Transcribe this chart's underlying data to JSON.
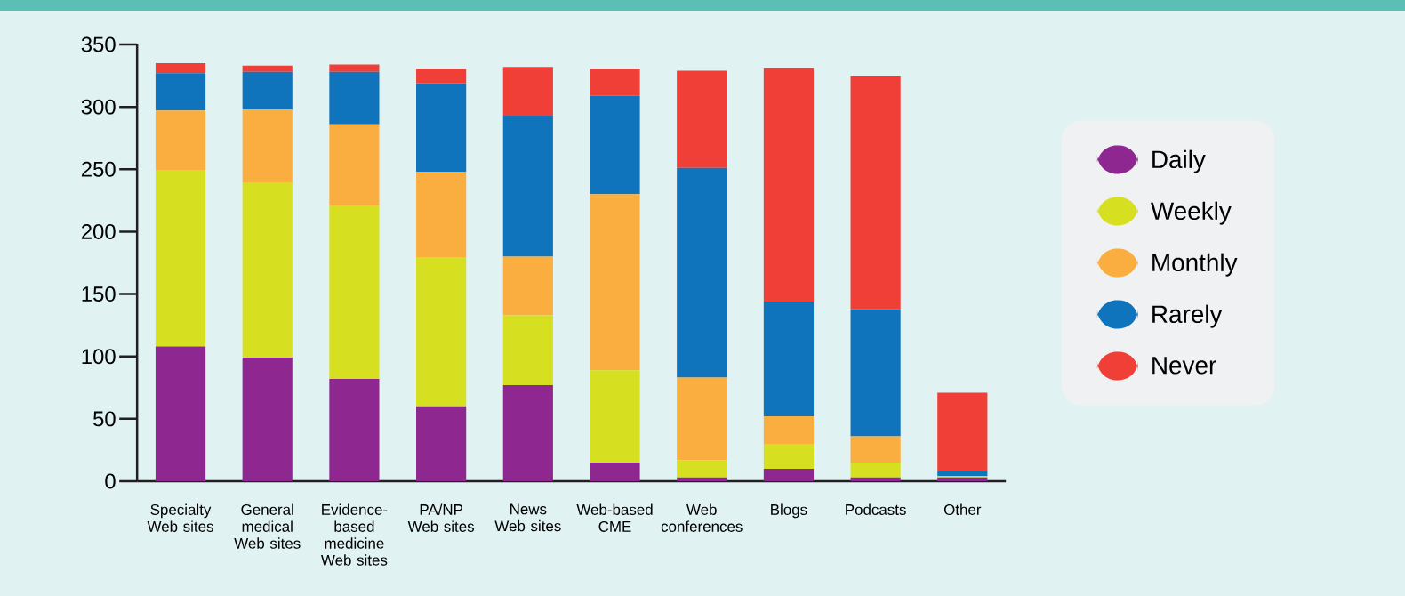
{
  "chart_data": {
    "type": "bar",
    "stacked": true,
    "categories": [
      "Specialty Web sites",
      "General medical Web sites",
      "Evidence-based medicine Web sites",
      "PA/NP Web sites",
      "News Web sites",
      "Web-based CME",
      "Web conferences",
      "Blogs",
      "Podcasts",
      "Other"
    ],
    "series": [
      {
        "name": "Daily",
        "color": "#8e278f",
        "values": [
          108,
          99,
          82,
          60,
          77,
          15,
          3,
          10,
          3,
          3
        ]
      },
      {
        "name": "Weekly",
        "color": "#d7df21",
        "values": [
          141,
          140,
          139,
          119,
          56,
          74,
          14,
          20,
          12,
          1
        ]
      },
      {
        "name": "Monthly",
        "color": "#fbae40",
        "values": [
          48,
          59,
          65,
          69,
          47,
          141,
          66,
          22,
          21,
          0
        ]
      },
      {
        "name": "Rarely",
        "color": "#1074bc",
        "values": [
          30,
          30,
          42,
          71,
          113,
          79,
          168,
          92,
          102,
          4
        ]
      },
      {
        "name": "Never",
        "color": "#ef3f37",
        "values": [
          8,
          5,
          6,
          11,
          39,
          21,
          78,
          187,
          187,
          63
        ]
      }
    ],
    "ylim": [
      0,
      350
    ],
    "yticks": [
      0,
      50,
      100,
      150,
      200,
      250,
      300,
      350
    ],
    "grid": false,
    "legend": "right"
  }
}
